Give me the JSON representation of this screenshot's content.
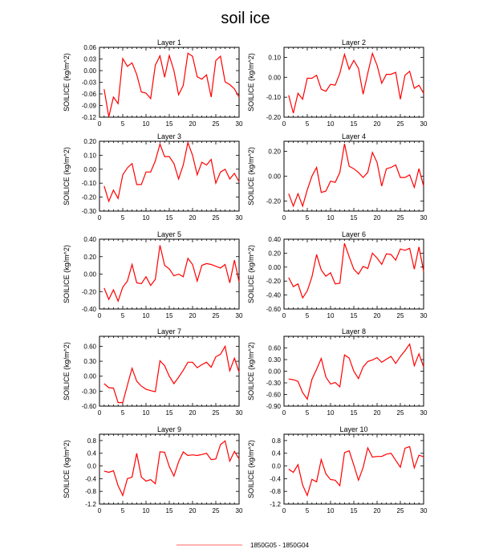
{
  "title": "soil ice",
  "colors": {
    "series": "#ff0000",
    "legend_line": "#ff9999"
  },
  "legend": {
    "label": "1850G05 - 1850G04"
  },
  "chart_data": [
    {
      "type": "line",
      "title": "Layer 1",
      "ylabel": "SOILICE  (kg/m^2)",
      "xlim": [
        0,
        30
      ],
      "xticks": [
        "0",
        "5",
        "10",
        "15",
        "20",
        "25",
        "30"
      ],
      "ylim": [
        -0.12,
        0.06
      ],
      "yticks": [
        "-0.12",
        "-0.09",
        "-0.06",
        "-0.03",
        "0.00",
        "0.03",
        "0.06"
      ],
      "x": [
        1,
        2,
        3,
        4,
        5,
        6,
        7,
        8,
        9,
        10,
        11,
        12,
        13,
        14,
        15,
        16,
        17,
        18,
        19,
        20,
        21,
        22,
        23,
        24,
        25,
        26,
        27,
        28,
        29,
        30
      ],
      "series": [
        {
          "values": [
            -0.048,
            -0.119,
            -0.068,
            -0.085,
            0.031,
            0.011,
            0.02,
            -0.01,
            -0.055,
            -0.058,
            -0.072,
            0.014,
            0.038,
            -0.017,
            0.039,
            0.0,
            -0.062,
            -0.038,
            0.045,
            0.037,
            -0.016,
            -0.022,
            -0.011,
            -0.068,
            0.026,
            0.037,
            -0.029,
            -0.036,
            -0.047,
            -0.068
          ]
        }
      ]
    },
    {
      "type": "line",
      "title": "Layer 2",
      "ylabel": "SOILICE  (kg/m^2)",
      "xlim": [
        0,
        30
      ],
      "xticks": [
        "0",
        "5",
        "10",
        "15",
        "20",
        "25",
        "30"
      ],
      "ylim": [
        -0.2,
        0.15
      ],
      "yticks": [
        "-0.20",
        "-0.10",
        "0.00",
        "0.10"
      ],
      "x": [
        1,
        2,
        3,
        4,
        5,
        6,
        7,
        8,
        9,
        10,
        11,
        12,
        13,
        14,
        15,
        16,
        17,
        18,
        19,
        20,
        21,
        22,
        23,
        24,
        25,
        26,
        27,
        28,
        29,
        30
      ],
      "series": [
        {
          "values": [
            -0.09,
            -0.18,
            -0.08,
            -0.11,
            -0.005,
            -0.005,
            0.01,
            -0.06,
            -0.07,
            -0.035,
            -0.04,
            0.02,
            0.115,
            0.04,
            0.085,
            0.045,
            -0.085,
            0.02,
            0.12,
            0.06,
            -0.03,
            0.015,
            0.015,
            0.025,
            -0.11,
            0.01,
            0.03,
            -0.055,
            -0.04,
            -0.08
          ]
        }
      ]
    },
    {
      "type": "line",
      "title": "Layer 3",
      "ylabel": "SOILICE  (kg/m^2)",
      "xlim": [
        0,
        30
      ],
      "xticks": [
        "0",
        "5",
        "10",
        "15",
        "20",
        "25",
        "30"
      ],
      "ylim": [
        -0.3,
        0.2
      ],
      "yticks": [
        "-0.30",
        "-0.20",
        "-0.10",
        "0.00",
        "0.10",
        "0.20"
      ],
      "x": [
        1,
        2,
        3,
        4,
        5,
        6,
        7,
        8,
        9,
        10,
        11,
        12,
        13,
        14,
        15,
        16,
        17,
        18,
        19,
        20,
        21,
        22,
        23,
        24,
        25,
        26,
        27,
        28,
        29,
        30
      ],
      "series": [
        {
          "values": [
            -0.12,
            -0.23,
            -0.15,
            -0.21,
            -0.04,
            0.01,
            0.04,
            -0.11,
            -0.11,
            -0.02,
            -0.02,
            0.06,
            0.18,
            0.09,
            0.09,
            0.04,
            -0.07,
            0.03,
            0.19,
            0.1,
            -0.04,
            0.05,
            0.03,
            0.07,
            -0.1,
            -0.02,
            0.0,
            -0.07,
            -0.03,
            -0.09
          ]
        }
      ]
    },
    {
      "type": "line",
      "title": "Layer 4",
      "ylabel": "SOILICE  (kg/m^2)",
      "xlim": [
        0,
        30
      ],
      "xticks": [
        "0",
        "5",
        "10",
        "15",
        "20",
        "25",
        "30"
      ],
      "ylim": [
        -0.28,
        0.28
      ],
      "yticks": [
        "-0.20",
        "0.00",
        "0.20"
      ],
      "x": [
        1,
        2,
        3,
        4,
        5,
        6,
        7,
        8,
        9,
        10,
        11,
        12,
        13,
        14,
        15,
        16,
        17,
        18,
        19,
        20,
        21,
        22,
        23,
        24,
        25,
        26,
        27,
        28,
        29,
        30
      ],
      "series": [
        {
          "values": [
            -0.14,
            -0.24,
            -0.14,
            -0.24,
            -0.11,
            0.0,
            0.07,
            -0.13,
            -0.12,
            -0.04,
            -0.05,
            0.03,
            0.26,
            0.08,
            0.06,
            0.03,
            -0.01,
            0.03,
            0.19,
            0.11,
            -0.08,
            0.06,
            0.07,
            0.09,
            -0.01,
            -0.01,
            0.01,
            -0.09,
            0.06,
            -0.08
          ]
        }
      ]
    },
    {
      "type": "line",
      "title": "Layer 5",
      "ylabel": "SOILICE  (kg/m^2)",
      "xlim": [
        0,
        30
      ],
      "xticks": [
        "0",
        "5",
        "10",
        "15",
        "20",
        "25",
        "30"
      ],
      "ylim": [
        -0.4,
        0.4
      ],
      "yticks": [
        "-0.40",
        "-0.20",
        "0.00",
        "0.20",
        "0.40"
      ],
      "x": [
        1,
        2,
        3,
        4,
        5,
        6,
        7,
        8,
        9,
        10,
        11,
        12,
        13,
        14,
        15,
        16,
        17,
        18,
        19,
        20,
        21,
        22,
        23,
        24,
        25,
        26,
        27,
        28,
        29,
        30
      ],
      "series": [
        {
          "values": [
            -0.16,
            -0.29,
            -0.18,
            -0.31,
            -0.15,
            -0.08,
            0.11,
            -0.1,
            -0.11,
            -0.03,
            -0.13,
            -0.06,
            0.33,
            0.1,
            0.06,
            -0.02,
            0.0,
            -0.03,
            0.18,
            0.11,
            -0.08,
            0.1,
            0.12,
            0.11,
            0.09,
            0.07,
            0.11,
            -0.1,
            0.16,
            -0.09
          ]
        }
      ]
    },
    {
      "type": "line",
      "title": "Layer 6",
      "ylabel": "SOILICE  (kg/m^2)",
      "xlim": [
        0,
        30
      ],
      "xticks": [
        "0",
        "5",
        "10",
        "15",
        "20",
        "25",
        "30"
      ],
      "ylim": [
        -0.6,
        0.4
      ],
      "yticks": [
        "-0.60",
        "-0.40",
        "-0.20",
        "0.00",
        "0.20",
        "0.40"
      ],
      "x": [
        1,
        2,
        3,
        4,
        5,
        6,
        7,
        8,
        9,
        10,
        11,
        12,
        13,
        14,
        15,
        16,
        17,
        18,
        19,
        20,
        21,
        22,
        23,
        24,
        25,
        26,
        27,
        28,
        29,
        30
      ],
      "series": [
        {
          "values": [
            -0.15,
            -0.28,
            -0.24,
            -0.44,
            -0.34,
            -0.14,
            0.18,
            -0.04,
            -0.13,
            -0.08,
            -0.24,
            -0.23,
            0.34,
            0.15,
            -0.03,
            -0.1,
            0.01,
            -0.02,
            0.2,
            0.13,
            0.04,
            0.19,
            0.18,
            0.1,
            0.26,
            0.24,
            0.27,
            -0.03,
            0.29,
            -0.06
          ]
        }
      ]
    },
    {
      "type": "line",
      "title": "Layer 7",
      "ylabel": "SOILICE  (kg/m^2)",
      "xlim": [
        0,
        30
      ],
      "xticks": [
        "0",
        "5",
        "10",
        "15",
        "20",
        "25",
        "30"
      ],
      "ylim": [
        -0.6,
        0.8
      ],
      "yticks": [
        "-0.60",
        "-0.30",
        "0.00",
        "0.30",
        "0.60"
      ],
      "x": [
        1,
        2,
        3,
        4,
        5,
        6,
        7,
        8,
        9,
        10,
        11,
        12,
        13,
        14,
        15,
        16,
        17,
        18,
        19,
        20,
        21,
        22,
        23,
        24,
        25,
        26,
        27,
        28,
        29,
        30
      ],
      "series": [
        {
          "values": [
            -0.15,
            -0.23,
            -0.24,
            -0.53,
            -0.53,
            -0.18,
            0.16,
            -0.1,
            -0.2,
            -0.26,
            -0.29,
            -0.31,
            0.31,
            0.21,
            0.0,
            -0.15,
            -0.02,
            0.12,
            0.28,
            0.28,
            0.17,
            0.23,
            0.28,
            0.18,
            0.39,
            0.44,
            0.6,
            0.11,
            0.36,
            0.08
          ]
        }
      ]
    },
    {
      "type": "line",
      "title": "Layer 8",
      "ylabel": "SOILICE  (kg/m^2)",
      "xlim": [
        0,
        30
      ],
      "xticks": [
        "0",
        "5",
        "10",
        "15",
        "20",
        "25",
        "30"
      ],
      "ylim": [
        -0.9,
        0.9
      ],
      "yticks": [
        "-0.90",
        "-0.60",
        "-0.30",
        "0.00",
        "0.30",
        "0.60"
      ],
      "x": [
        1,
        2,
        3,
        4,
        5,
        6,
        7,
        8,
        9,
        10,
        11,
        12,
        13,
        14,
        15,
        16,
        17,
        18,
        19,
        20,
        21,
        22,
        23,
        24,
        25,
        26,
        27,
        28,
        29,
        30
      ],
      "series": [
        {
          "values": [
            -0.2,
            -0.22,
            -0.26,
            -0.55,
            -0.72,
            -0.21,
            0.05,
            0.33,
            -0.15,
            -0.33,
            -0.29,
            -0.4,
            0.42,
            0.34,
            0.0,
            -0.19,
            0.11,
            0.25,
            0.29,
            0.35,
            0.23,
            0.31,
            0.38,
            0.2,
            0.38,
            0.53,
            0.7,
            0.14,
            0.45,
            0.11
          ]
        }
      ]
    },
    {
      "type": "line",
      "title": "Layer 9",
      "ylabel": "SOILICE  (kg/m^2)",
      "xlim": [
        0,
        30
      ],
      "xticks": [
        "0",
        "5",
        "10",
        "15",
        "20",
        "25",
        "30"
      ],
      "ylim": [
        -1.2,
        1.0
      ],
      "yticks": [
        "-1.2",
        "-0.8",
        "-0.4",
        "0.0",
        "0.4",
        "0.8"
      ],
      "x": [
        1,
        2,
        3,
        4,
        5,
        6,
        7,
        8,
        9,
        10,
        11,
        12,
        13,
        14,
        15,
        16,
        17,
        18,
        19,
        20,
        21,
        22,
        23,
        24,
        25,
        26,
        27,
        28,
        29,
        30
      ],
      "series": [
        {
          "values": [
            -0.16,
            -0.2,
            -0.15,
            -0.62,
            -0.93,
            -0.4,
            -0.35,
            0.4,
            -0.35,
            -0.48,
            -0.43,
            -0.56,
            0.45,
            0.43,
            -0.02,
            -0.32,
            0.13,
            0.44,
            0.33,
            0.35,
            0.33,
            0.36,
            0.4,
            0.2,
            0.22,
            0.67,
            0.79,
            0.15,
            0.46,
            0.22
          ]
        }
      ]
    },
    {
      "type": "line",
      "title": "Layer 10",
      "ylabel": "SOILICE  (kg/m^2)",
      "xlim": [
        0,
        30
      ],
      "xticks": [
        "0",
        "5",
        "10",
        "15",
        "20",
        "25",
        "30"
      ],
      "ylim": [
        -1.2,
        1.0
      ],
      "yticks": [
        "-1.2",
        "-0.8",
        "-0.4",
        "0.0",
        "0.4",
        "0.8"
      ],
      "x": [
        1,
        2,
        3,
        4,
        5,
        6,
        7,
        8,
        9,
        10,
        11,
        12,
        13,
        14,
        15,
        16,
        17,
        18,
        19,
        20,
        21,
        22,
        23,
        24,
        25,
        26,
        27,
        28,
        29,
        30
      ],
      "series": [
        {
          "values": [
            -0.1,
            -0.2,
            0.04,
            -0.6,
            -0.93,
            -0.42,
            -0.5,
            0.2,
            -0.25,
            -0.43,
            -0.45,
            -0.62,
            0.42,
            0.48,
            0.03,
            -0.45,
            -0.05,
            0.57,
            0.28,
            0.3,
            0.3,
            0.37,
            0.4,
            0.18,
            -0.04,
            0.56,
            0.61,
            -0.06,
            0.34,
            0.29
          ]
        }
      ]
    }
  ]
}
